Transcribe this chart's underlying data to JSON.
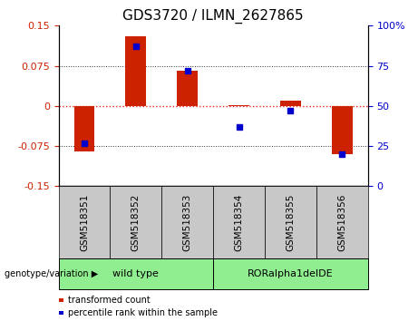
{
  "title": "GDS3720 / ILMN_2627865",
  "samples": [
    "GSM518351",
    "GSM518352",
    "GSM518353",
    "GSM518354",
    "GSM518355",
    "GSM518356"
  ],
  "red_values": [
    -0.085,
    0.13,
    0.065,
    0.002,
    0.01,
    -0.09
  ],
  "blue_percentiles": [
    27,
    87,
    72,
    37,
    47,
    20
  ],
  "ylim_left": [
    -0.15,
    0.15
  ],
  "ylim_right": [
    0,
    100
  ],
  "yticks_left": [
    -0.15,
    -0.075,
    0,
    0.075,
    0.15
  ],
  "yticks_right": [
    0,
    25,
    50,
    75,
    100
  ],
  "groups": [
    {
      "label": "wild type",
      "start": 0,
      "end": 3,
      "color": "#90EE90"
    },
    {
      "label": "RORalpha1delDE",
      "start": 3,
      "end": 6,
      "color": "#90EE90"
    }
  ],
  "group_label": "genotype/variation",
  "bar_color": "#CC2200",
  "dot_color": "#0000CC",
  "bg_color": "#FFFFFF",
  "plot_bg": "#FFFFFF",
  "zero_line_color": "#EE2222",
  "dot_grid_color": "#333333",
  "sample_box_color": "#C8C8C8",
  "legend_red": "transformed count",
  "legend_blue": "percentile rank within the sample",
  "title_fontsize": 11,
  "axis_fontsize": 8,
  "label_fontsize": 7.5
}
